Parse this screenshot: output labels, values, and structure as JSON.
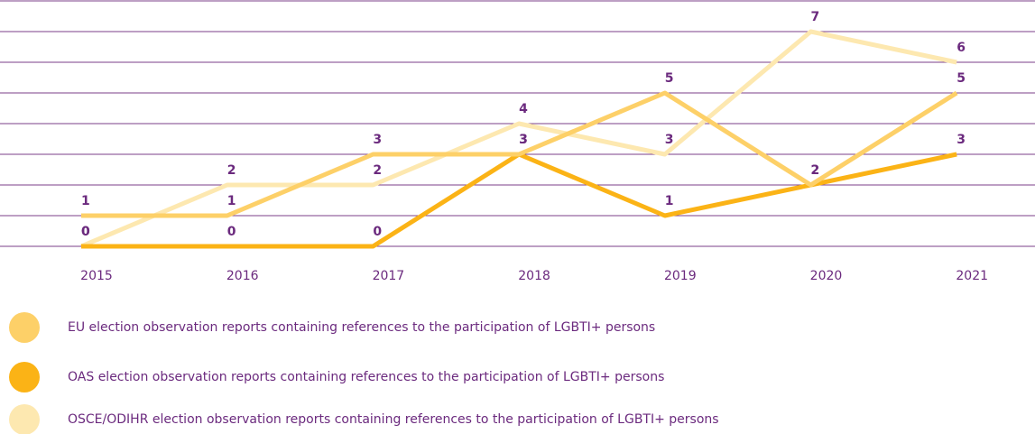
{
  "chart_data": {
    "type": "line",
    "x": [
      "2015",
      "2016",
      "2017",
      "2018",
      "2019",
      "2020",
      "2021"
    ],
    "series": [
      {
        "name": "EU election observation reports containing references to the participation of LGBTI+ persons",
        "color": "#fdd068",
        "values": [
          1,
          1,
          3,
          3,
          5,
          2,
          5
        ]
      },
      {
        "name": "OAS election observation reports containing references to the participation of LGBTI+ persons",
        "color": "#fbb316",
        "values": [
          0,
          0,
          0,
          3,
          1,
          2,
          3
        ]
      },
      {
        "name": "OSCE/ODIHR election observation reports containing references to the participation of LGBTI+ persons",
        "color": "#fde8b0",
        "values": [
          0,
          2,
          2,
          4,
          3,
          7,
          6
        ]
      }
    ],
    "ylim": [
      0,
      8
    ],
    "yticks": [
      0,
      1,
      2,
      3,
      4,
      5,
      6,
      7,
      8
    ],
    "grid": true,
    "legend": "bottom-left"
  }
}
